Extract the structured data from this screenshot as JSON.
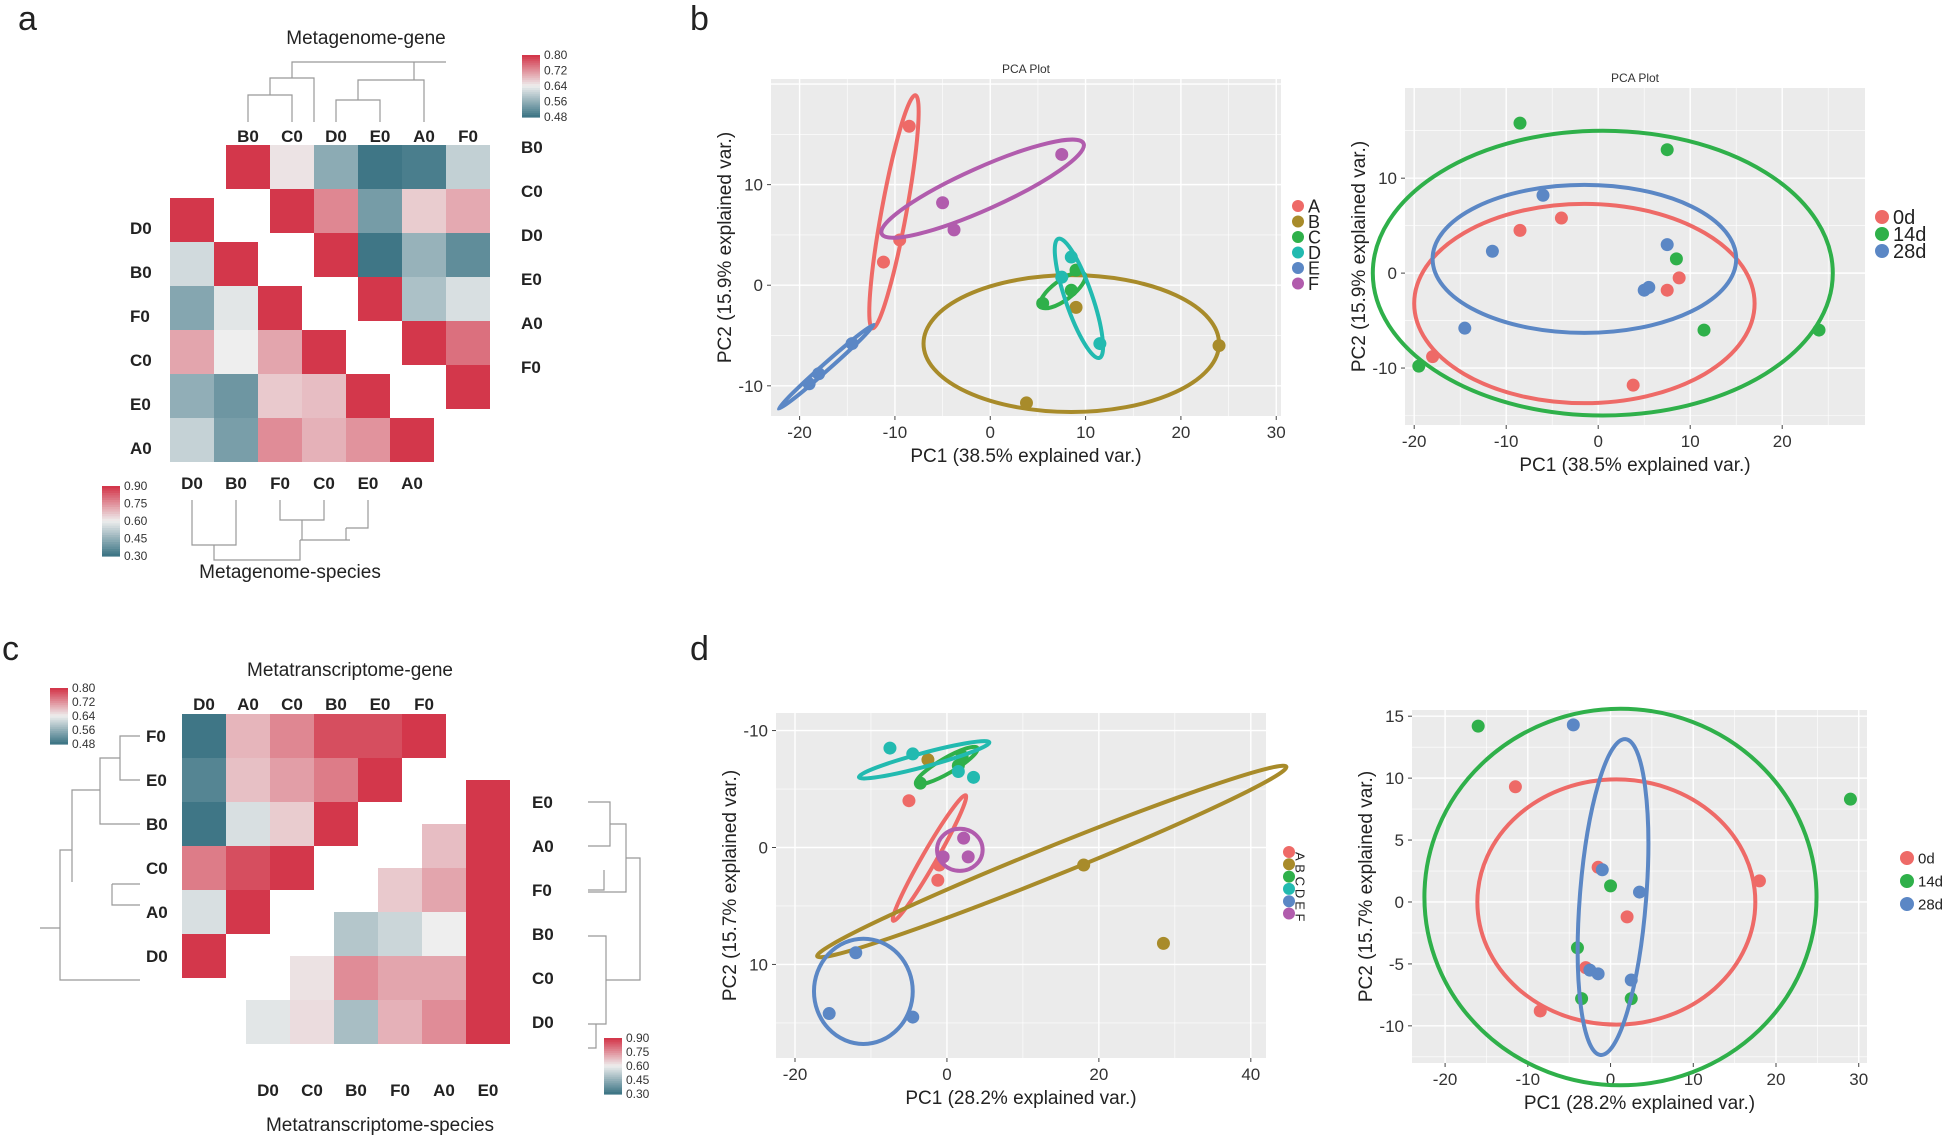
{
  "panels": {
    "a": "a",
    "b": "b",
    "c": "c",
    "d": "d"
  },
  "colors": {
    "A": "#ee6a67",
    "B": "#a88b2a",
    "C": "#2fb04a",
    "D": "#22bab0",
    "E": "#5b87c5",
    "F": "#b15cad",
    "0d": "#ee6a67",
    "14d": "#2fb04a",
    "28d": "#5b87c5",
    "heat_high": "#d3374b",
    "heat_mid": "#eeeeee",
    "heat_low": "#3f7686",
    "plot_bg": "#ebebeb"
  },
  "chart_data": [
    {
      "id": "a",
      "type": "heatmap",
      "title": "Metagenome-gene",
      "xlabel": "Metagenome-species",
      "genes_labels": [
        "B0",
        "C0",
        "D0",
        "E0",
        "A0",
        "F0"
      ],
      "genes_matrix": [
        [
          0.8,
          0.65,
          0.55,
          0.48,
          0.49,
          0.6
        ],
        [
          0.65,
          0.8,
          0.73,
          0.53,
          0.67,
          0.7
        ],
        [
          0.55,
          0.73,
          0.8,
          0.48,
          0.56,
          0.51
        ],
        [
          0.48,
          0.53,
          0.48,
          0.8,
          0.58,
          0.62
        ],
        [
          0.49,
          0.67,
          0.56,
          0.58,
          0.8,
          0.75
        ],
        [
          0.6,
          0.7,
          0.51,
          0.62,
          0.75,
          0.8
        ]
      ],
      "species_labels": [
        "D0",
        "B0",
        "F0",
        "C0",
        "E0",
        "A0"
      ],
      "species_matrix": [
        [
          0.9,
          0.55,
          0.42,
          0.72,
          0.44,
          0.53
        ],
        [
          0.55,
          0.9,
          0.58,
          0.6,
          0.38,
          0.4
        ],
        [
          0.42,
          0.58,
          0.9,
          0.72,
          0.66,
          0.76
        ],
        [
          0.72,
          0.6,
          0.72,
          0.9,
          0.68,
          0.7
        ],
        [
          0.44,
          0.38,
          0.66,
          0.68,
          0.9,
          0.75
        ],
        [
          0.53,
          0.4,
          0.76,
          0.7,
          0.75,
          0.9
        ]
      ],
      "legend_genes": [
        "0.80",
        "0.72",
        "0.64",
        "0.56",
        "0.48"
      ],
      "legend_species": [
        "0.90",
        "0.75",
        "0.60",
        "0.45",
        "0.30"
      ]
    },
    {
      "id": "b-left",
      "type": "scatter",
      "title": "PCA Plot",
      "xlabel": "PC1 (38.5% explained var.)",
      "ylabel": "PC2 (15.9% explained var.)",
      "xlim": [
        -23,
        30.5
      ],
      "ylim": [
        -13,
        20.5
      ],
      "xticks": [
        -20,
        -10,
        0,
        10,
        20,
        30
      ],
      "yticks": [
        -10,
        0,
        10
      ],
      "legend": [
        "A",
        "B",
        "C",
        "D",
        "E",
        "F"
      ],
      "series": [
        {
          "name": "A",
          "points": [
            [
              -8.5,
              15.8
            ],
            [
              -9.5,
              4.5
            ],
            [
              -11.2,
              2.3
            ]
          ],
          "ellipse": {
            "cx": -10.1,
            "cy": 7.3,
            "rx": 11.8,
            "ry": 1.3,
            "angle": 79
          }
        },
        {
          "name": "B",
          "points": [
            [
              24,
              -6
            ],
            [
              3.8,
              -11.7
            ],
            [
              9,
              -2.2
            ]
          ],
          "ellipse": {
            "cx": 8.5,
            "cy": -5.8,
            "rx": 15.5,
            "ry": 6.8,
            "angle": 0
          }
        },
        {
          "name": "C",
          "points": [
            [
              5.5,
              -1.8
            ],
            [
              8.5,
              -0.5
            ],
            [
              9,
              1.5
            ]
          ],
          "ellipse": {
            "cx": 7.6,
            "cy": -0.5,
            "rx": 2.8,
            "ry": 1.0,
            "angle": 35
          }
        },
        {
          "name": "D",
          "points": [
            [
              8.5,
              2.8
            ],
            [
              11.5,
              -5.8
            ],
            [
              7.5,
              0.8
            ]
          ],
          "ellipse": {
            "cx": 9.3,
            "cy": -1.3,
            "rx": 6.3,
            "ry": 1.4,
            "angle": -70
          }
        },
        {
          "name": "E",
          "points": [
            [
              -19,
              -9.8
            ],
            [
              -18,
              -8.8
            ],
            [
              -14.5,
              -5.8
            ]
          ],
          "ellipse": {
            "cx": -17.2,
            "cy": -8.1,
            "rx": 6.5,
            "ry": 0.35,
            "angle": 40
          }
        },
        {
          "name": "F",
          "points": [
            [
              7.5,
              13
            ],
            [
              -5,
              8.2
            ],
            [
              -3.8,
              5.5
            ]
          ],
          "ellipse": {
            "cx": -0.8,
            "cy": 9.6,
            "rx": 11.5,
            "ry": 2.1,
            "angle": 23
          }
        }
      ]
    },
    {
      "id": "b-right",
      "type": "scatter",
      "title": "PCA Plot",
      "xlabel": "PC1 (38.5% explained var.)",
      "ylabel": "PC2 (15.9% explained var.)",
      "xlim": [
        -21,
        29
      ],
      "ylim": [
        -16,
        19.5
      ],
      "xticks": [
        -20,
        -10,
        0,
        10,
        20
      ],
      "yticks": [
        -10,
        0,
        10
      ],
      "legend": [
        "0d",
        "14d",
        "28d"
      ],
      "series": [
        {
          "name": "0d",
          "points": [
            [
              -18,
              -8.8
            ],
            [
              -8.5,
              4.5
            ],
            [
              -4,
              5.8
            ],
            [
              7.5,
              -1.8
            ],
            [
              8.8,
              -0.5
            ],
            [
              3.8,
              -11.8
            ]
          ],
          "ellipse": {
            "cx": -1.5,
            "cy": -3.2,
            "rx": 18.5,
            "ry": 10.5,
            "angle": 0
          }
        },
        {
          "name": "14d",
          "points": [
            [
              -19.5,
              -9.8
            ],
            [
              -8.5,
              15.8
            ],
            [
              7.5,
              13
            ],
            [
              8.5,
              1.5
            ],
            [
              11.5,
              -6
            ],
            [
              24,
              -6
            ]
          ],
          "ellipse": {
            "cx": 0.5,
            "cy": 0,
            "rx": 25,
            "ry": 15,
            "angle": 0
          }
        },
        {
          "name": "28d",
          "points": [
            [
              -6,
              8.2
            ],
            [
              -11.5,
              2.3
            ],
            [
              -14.5,
              -5.8
            ],
            [
              5,
              -1.8
            ],
            [
              5.5,
              -1.5
            ],
            [
              7.5,
              3
            ]
          ],
          "ellipse": {
            "cx": -1.5,
            "cy": 1.5,
            "rx": 16.5,
            "ry": 7.8,
            "angle": 0
          }
        }
      ]
    },
    {
      "id": "c",
      "type": "heatmap",
      "title": "Metatranscriptome-gene",
      "xlabel": "Metatranscriptome-species",
      "genes_cols": [
        "D0",
        "A0",
        "C0",
        "B0",
        "E0",
        "F0"
      ],
      "genes_rows": [
        "F0",
        "E0",
        "B0",
        "C0",
        "A0",
        "D0"
      ],
      "genes_upper": [
        [
          0.46,
          0.69,
          0.73,
          0.78,
          0.78,
          0.8
        ],
        [
          0.5,
          0.68,
          0.71,
          0.74,
          0.8
        ],
        [
          0.48,
          0.62,
          0.67,
          0.8
        ],
        [
          0.74,
          0.78,
          0.8
        ],
        [
          0.62,
          0.8
        ],
        [
          0.8
        ]
      ],
      "species_labels": [
        "E0",
        "A0",
        "F0",
        "B0",
        "C0",
        "D0"
      ],
      "species_cols": [
        "D0",
        "C0",
        "B0",
        "F0",
        "A0",
        "E0"
      ],
      "species_upper": [
        [
          0.9
        ],
        [
          0.9,
          0.68
        ],
        [
          0.9,
          0.72,
          0.66
        ],
        [
          0.9,
          0.6,
          0.54,
          0.5
        ],
        [
          0.9,
          0.72,
          0.72,
          0.76,
          0.62
        ],
        [
          0.9,
          0.76,
          0.7,
          0.48,
          0.63,
          0.58
        ]
      ],
      "legend_genes": [
        "0.80",
        "0.72",
        "0.64",
        "0.56",
        "0.48"
      ],
      "legend_species": [
        "0.90",
        "0.75",
        "0.60",
        "0.45",
        "0.30"
      ]
    },
    {
      "id": "d-left",
      "type": "scatter",
      "title": "",
      "xlabel": "PC1 (28.2% explained var.)",
      "ylabel": "PC2 (15.7% explained var.)",
      "xlim": [
        -22.5,
        42
      ],
      "ylim": [
        -11.5,
        18
      ],
      "y_reversed": true,
      "xticks": [
        -20,
        0,
        20,
        40
      ],
      "yticks": [
        -10,
        0,
        10
      ],
      "legend": [
        "A",
        "B",
        "C",
        "D",
        "E",
        "F"
      ],
      "series": [
        {
          "name": "A",
          "points": [
            [
              -1.2,
              2.8
            ],
            [
              -1,
              1.5
            ],
            [
              -5,
              -4
            ]
          ],
          "ellipse": {
            "cx": -2.3,
            "cy": 0.9,
            "rx": 6.7,
            "ry": 0.8,
            "angle": -60
          }
        },
        {
          "name": "B",
          "points": [
            [
              28.5,
              8.2
            ],
            [
              18,
              1.5
            ],
            [
              -2.5,
              -7.5
            ]
          ],
          "ellipse": {
            "cx": 13.8,
            "cy": 1.2,
            "rx": 30.5,
            "ry": 1.3,
            "angle": -22
          }
        },
        {
          "name": "C",
          "points": [
            [
              -3.5,
              -5.5
            ],
            [
              1.5,
              -7
            ],
            [
              2,
              -7.8
            ]
          ],
          "ellipse": {
            "cx": 0,
            "cy": -7,
            "rx": 4,
            "ry": 0.7,
            "angle": -30
          }
        },
        {
          "name": "D",
          "points": [
            [
              -7.5,
              -8.5
            ],
            [
              -4.5,
              -8
            ],
            [
              1.5,
              -6.5
            ],
            [
              3.5,
              -6
            ]
          ],
          "ellipse": {
            "cx": -3,
            "cy": -7.5,
            "rx": 8.5,
            "ry": 0.6,
            "angle": -15
          }
        },
        {
          "name": "E",
          "points": [
            [
              -15.5,
              14.2
            ],
            [
              -4.5,
              14.5
            ],
            [
              -12,
              9
            ]
          ],
          "ellipse": {
            "cx": -11,
            "cy": 12.3,
            "rx": 6.5,
            "ry": 4.5,
            "angle": 0
          }
        },
        {
          "name": "F",
          "points": [
            [
              -0.5,
              0.8
            ],
            [
              2.8,
              0.8
            ],
            [
              2.2,
              -0.8
            ]
          ],
          "ellipse": {
            "cx": 1.7,
            "cy": 0.2,
            "rx": 3,
            "ry": 1.8,
            "angle": 0
          }
        }
      ]
    },
    {
      "id": "d-right",
      "type": "scatter",
      "title": "",
      "xlabel": "PC1 (28.2% explained var.)",
      "ylabel": "PC2 (15.7% explained var.)",
      "xlim": [
        -24,
        31
      ],
      "ylim": [
        -13,
        15.5
      ],
      "xticks": [
        -20,
        -10,
        0,
        10,
        20,
        30
      ],
      "yticks": [
        -10,
        -5,
        0,
        5,
        10,
        15
      ],
      "legend": [
        "0d",
        "14d",
        "28d"
      ],
      "series": [
        {
          "name": "0d",
          "points": [
            [
              -11.5,
              9.3
            ],
            [
              -1.5,
              2.8
            ],
            [
              18,
              1.7
            ],
            [
              2,
              -1.2
            ],
            [
              -3,
              -5.3
            ],
            [
              -8.5,
              -8.8
            ]
          ],
          "ellipse": {
            "cx": 0.7,
            "cy": 0,
            "rx": 16.8,
            "ry": 9.9,
            "angle": 0
          }
        },
        {
          "name": "14d",
          "points": [
            [
              -16,
              14.2
            ],
            [
              29,
              8.3
            ],
            [
              0,
              1.3
            ],
            [
              -4,
              -3.7
            ],
            [
              -3.5,
              -7.8
            ],
            [
              2.5,
              -7.8
            ]
          ],
          "ellipse": {
            "cx": 1.2,
            "cy": 0.4,
            "rx": 23.7,
            "ry": 15.2,
            "angle": 0
          }
        },
        {
          "name": "28d",
          "points": [
            [
              -4.5,
              14.3
            ],
            [
              -1,
              2.6
            ],
            [
              3.5,
              0.8
            ],
            [
              -2.5,
              -5.5
            ],
            [
              -1.5,
              -5.8
            ],
            [
              2.5,
              -6.3
            ]
          ],
          "ellipse": {
            "cx": 0.3,
            "cy": 0.4,
            "rx": 4,
            "ry": 12.8,
            "angle": -3
          }
        }
      ]
    }
  ]
}
